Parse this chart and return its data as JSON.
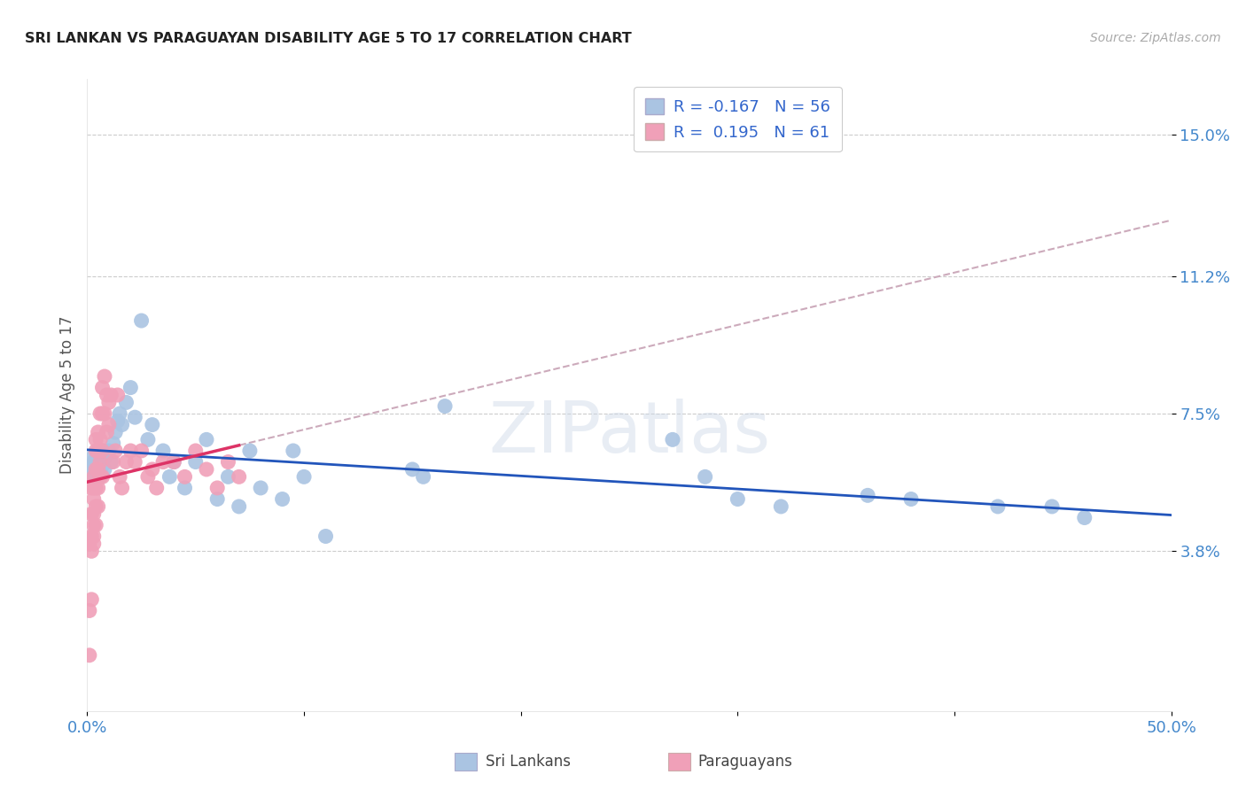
{
  "title": "SRI LANKAN VS PARAGUAYAN DISABILITY AGE 5 TO 17 CORRELATION CHART",
  "source": "Source: ZipAtlas.com",
  "ylabel": "Disability Age 5 to 17",
  "xlim": [
    0.0,
    0.5
  ],
  "ylim": [
    -0.005,
    0.165
  ],
  "ytick_positions": [
    0.038,
    0.075,
    0.112,
    0.15
  ],
  "ytick_labels": [
    "3.8%",
    "7.5%",
    "11.2%",
    "15.0%"
  ],
  "background_color": "#ffffff",
  "legend_blue_r": "-0.167",
  "legend_blue_n": "56",
  "legend_pink_r": "0.195",
  "legend_pink_n": "61",
  "sri_lankan_color": "#aac4e2",
  "paraguayan_color": "#f0a0b8",
  "sri_lankan_line_color": "#2255bb",
  "paraguayan_line_color": "#dd3366",
  "paraguayan_dashed_color": "#ccaabb",
  "sri_lankans_x": [
    0.001,
    0.002,
    0.002,
    0.003,
    0.003,
    0.004,
    0.004,
    0.005,
    0.005,
    0.006,
    0.006,
    0.007,
    0.007,
    0.008,
    0.008,
    0.009,
    0.01,
    0.011,
    0.012,
    0.013,
    0.014,
    0.015,
    0.016,
    0.018,
    0.02,
    0.022,
    0.025,
    0.028,
    0.03,
    0.035,
    0.038,
    0.04,
    0.045,
    0.05,
    0.055,
    0.06,
    0.065,
    0.07,
    0.075,
    0.08,
    0.09,
    0.095,
    0.1,
    0.11,
    0.15,
    0.155,
    0.165,
    0.27,
    0.285,
    0.3,
    0.32,
    0.36,
    0.38,
    0.42,
    0.445,
    0.46
  ],
  "sri_lankans_y": [
    0.06,
    0.058,
    0.063,
    0.06,
    0.062,
    0.059,
    0.063,
    0.061,
    0.058,
    0.062,
    0.059,
    0.061,
    0.065,
    0.063,
    0.06,
    0.064,
    0.065,
    0.062,
    0.067,
    0.07,
    0.073,
    0.075,
    0.072,
    0.078,
    0.082,
    0.074,
    0.1,
    0.068,
    0.072,
    0.065,
    0.058,
    0.062,
    0.055,
    0.062,
    0.068,
    0.052,
    0.058,
    0.05,
    0.065,
    0.055,
    0.052,
    0.065,
    0.058,
    0.042,
    0.06,
    0.058,
    0.077,
    0.068,
    0.058,
    0.052,
    0.05,
    0.053,
    0.052,
    0.05,
    0.05,
    0.047
  ],
  "paraguayans_x": [
    0.001,
    0.001,
    0.001,
    0.002,
    0.002,
    0.002,
    0.002,
    0.002,
    0.003,
    0.003,
    0.003,
    0.003,
    0.003,
    0.003,
    0.003,
    0.004,
    0.004,
    0.004,
    0.004,
    0.004,
    0.004,
    0.005,
    0.005,
    0.005,
    0.005,
    0.005,
    0.006,
    0.006,
    0.006,
    0.006,
    0.007,
    0.007,
    0.007,
    0.007,
    0.008,
    0.008,
    0.009,
    0.009,
    0.01,
    0.01,
    0.011,
    0.012,
    0.013,
    0.014,
    0.015,
    0.016,
    0.018,
    0.02,
    0.022,
    0.025,
    0.028,
    0.03,
    0.032,
    0.035,
    0.04,
    0.045,
    0.05,
    0.055,
    0.06,
    0.065,
    0.07
  ],
  "paraguayans_y": [
    0.01,
    0.022,
    0.04,
    0.042,
    0.025,
    0.038,
    0.048,
    0.055,
    0.04,
    0.042,
    0.045,
    0.048,
    0.052,
    0.055,
    0.058,
    0.045,
    0.05,
    0.055,
    0.06,
    0.065,
    0.068,
    0.05,
    0.055,
    0.06,
    0.065,
    0.07,
    0.058,
    0.062,
    0.068,
    0.075,
    0.058,
    0.065,
    0.075,
    0.082,
    0.075,
    0.085,
    0.07,
    0.08,
    0.072,
    0.078,
    0.08,
    0.062,
    0.065,
    0.08,
    0.058,
    0.055,
    0.062,
    0.065,
    0.062,
    0.065,
    0.058,
    0.06,
    0.055,
    0.062,
    0.062,
    0.058,
    0.065,
    0.06,
    0.055,
    0.062,
    0.058
  ]
}
